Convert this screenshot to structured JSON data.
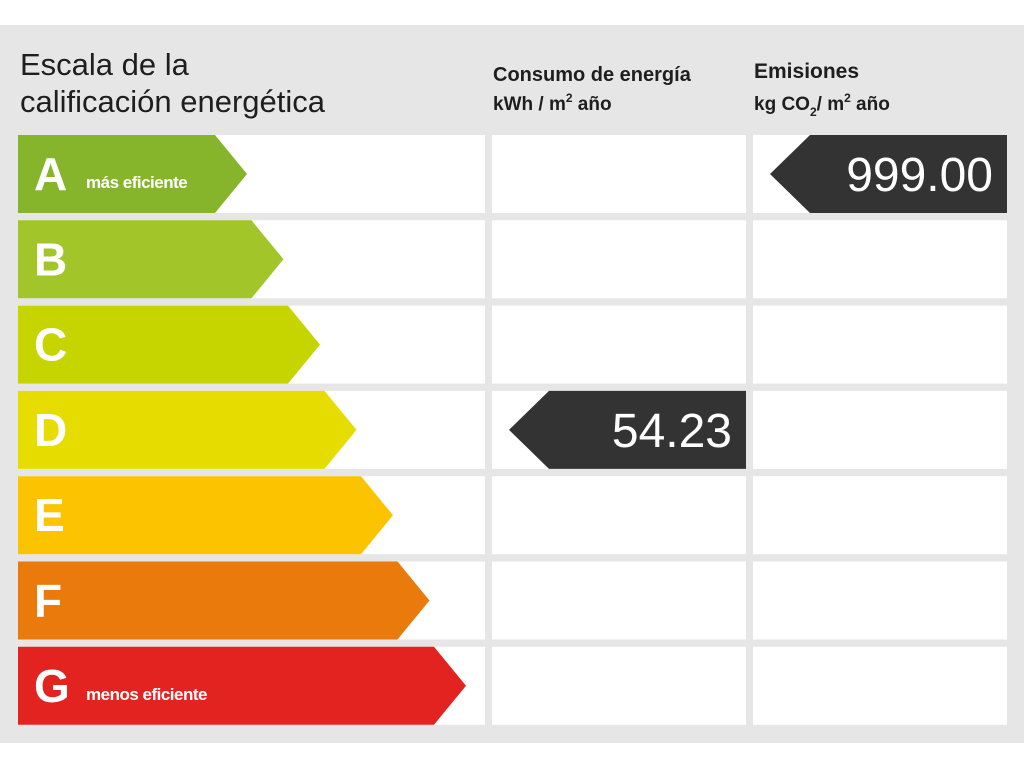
{
  "title": [
    "Escala de la",
    "calificación energética"
  ],
  "columns": {
    "consumption": {
      "title": "Consumo de energía",
      "unit": [
        "kWh / m",
        "2",
        " año"
      ],
      "value": "54.23",
      "class": "D"
    },
    "emissions": {
      "title": "Emisiones",
      "unit": [
        "kg CO",
        "2",
        "/ m",
        "2",
        " año"
      ],
      "value": "999.00",
      "class": "A"
    }
  },
  "rows": [
    {
      "letter": "A",
      "note": "más eficiente",
      "color": "#86b42a"
    },
    {
      "letter": "B",
      "color": "#a2c629"
    },
    {
      "letter": "C",
      "color": "#c6d400"
    },
    {
      "letter": "D",
      "color": "#e6dc00"
    },
    {
      "letter": "E",
      "color": "#fbc300"
    },
    {
      "letter": "F",
      "color": "#ea7a0b"
    },
    {
      "letter": "G",
      "note": "menos eficiente",
      "color": "#e2231f"
    }
  ]
}
